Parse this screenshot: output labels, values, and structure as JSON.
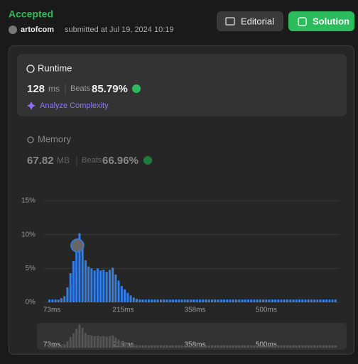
{
  "header": {
    "status": "Accepted",
    "user": "artofcom",
    "submitted": "submitted at Jul 19, 2024 10:19",
    "editorial": "Editorial",
    "solution": "Solution"
  },
  "runtime": {
    "label": "Runtime",
    "value": "128",
    "unit": "ms",
    "beats_label": "Beats",
    "beats": "85.79%",
    "analyze": "Analyze Complexity"
  },
  "memory": {
    "label": "Memory",
    "value": "67.82",
    "unit": "MB",
    "beats_label": "Beats",
    "beats": "66.96%"
  },
  "chart_data": {
    "type": "bar",
    "color": "#2f80ed",
    "grid": true,
    "x": [
      68,
      74,
      80,
      86,
      92,
      98,
      104,
      110,
      116,
      122,
      128,
      134,
      140,
      146,
      152,
      158,
      164,
      170,
      176,
      182,
      188,
      194,
      200,
      206,
      212,
      218,
      224,
      230,
      236,
      242,
      248,
      254,
      260,
      266,
      272,
      278,
      284,
      290,
      296,
      302,
      308,
      314,
      320,
      326,
      332,
      338,
      344,
      350,
      356,
      362,
      368,
      374,
      380,
      386,
      392,
      398,
      404,
      410,
      416,
      422,
      428,
      434,
      440,
      446,
      452,
      458,
      464,
      470,
      476,
      482,
      488,
      494,
      500,
      506,
      512,
      518,
      524,
      530,
      536,
      542,
      548,
      554,
      560,
      566,
      572,
      578,
      584,
      590,
      596,
      602,
      608,
      614,
      620,
      626,
      632,
      638
    ],
    "values": [
      0.4,
      0.4,
      0.4,
      0.4,
      0.6,
      0.9,
      2.2,
      4.3,
      6.1,
      8.1,
      10.2,
      8.6,
      6.2,
      5.3,
      5.0,
      4.7,
      5.0,
      4.7,
      4.8,
      4.5,
      4.8,
      5.1,
      4.1,
      3.2,
      2.4,
      1.9,
      1.4,
      1.0,
      0.7,
      0.5,
      0.4,
      0.4,
      0.4,
      0.4,
      0.4,
      0.4,
      0.4,
      0.4,
      0.4,
      0.4,
      0.4,
      0.4,
      0.4,
      0.4,
      0.4,
      0.4,
      0.4,
      0.4,
      0.4,
      0.4,
      0.4,
      0.4,
      0.4,
      0.4,
      0.4,
      0.4,
      0.4,
      0.4,
      0.4,
      0.4,
      0.4,
      0.4,
      0.4,
      0.4,
      0.4,
      0.4,
      0.4,
      0.4,
      0.4,
      0.4,
      0.4,
      0.4,
      0.4,
      0.4,
      0.4,
      0.4,
      0.4,
      0.4,
      0.4,
      0.4,
      0.4,
      0.4,
      0.4,
      0.4,
      0.4,
      0.4,
      0.4,
      0.4,
      0.4,
      0.4,
      0.4,
      0.4,
      0.4,
      0.4,
      0.4,
      0.4
    ],
    "xlim": [
      63,
      646
    ],
    "ylim": [
      0,
      15
    ],
    "xticks": [
      {
        "value": 73,
        "label": "73ms"
      },
      {
        "value": 215,
        "label": "215ms"
      },
      {
        "value": 358,
        "label": "358ms"
      },
      {
        "value": 500,
        "label": "500ms"
      }
    ],
    "yticks": [
      {
        "value": 0,
        "label": "0%"
      },
      {
        "value": 5,
        "label": "5%"
      },
      {
        "value": 10,
        "label": "10%"
      },
      {
        "value": 15,
        "label": "15%"
      }
    ]
  }
}
